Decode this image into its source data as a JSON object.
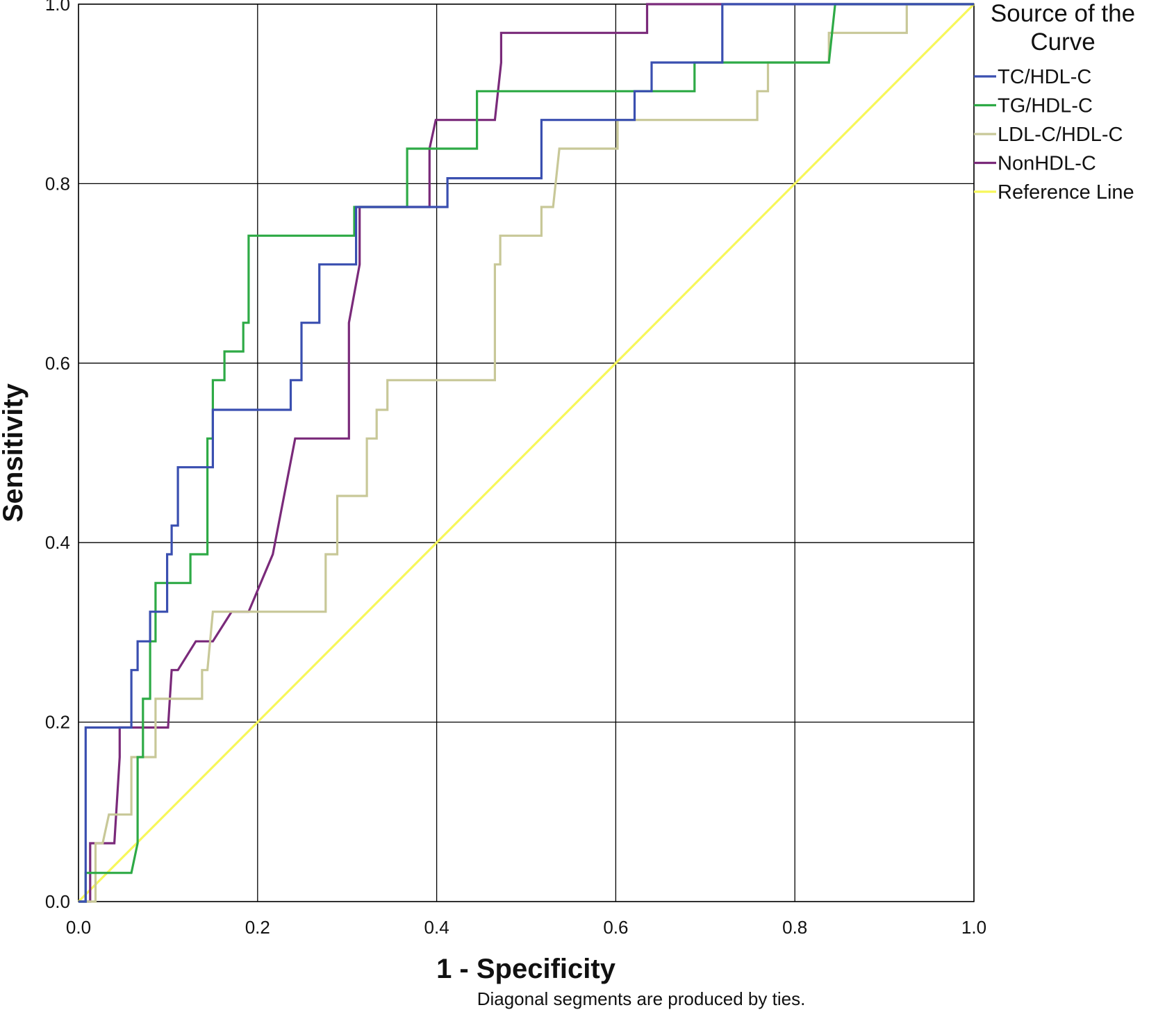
{
  "chart_data": {
    "type": "line",
    "xlabel": "1 - Specificity",
    "ylabel": "Sensitivity",
    "xlim": [
      0,
      1
    ],
    "ylim": [
      0,
      1
    ],
    "x_ticks": [
      "0.0",
      "0.2",
      "0.4",
      "0.6",
      "0.8",
      "1.0"
    ],
    "y_ticks": [
      "0.0",
      "0.2",
      "0.4",
      "0.6",
      "0.8",
      "1.0"
    ],
    "grid": true,
    "legend_title": "Source of the Curve",
    "legend_position": "right",
    "footnote": "Diagonal segments are produced by ties.",
    "series": [
      {
        "name": "TC/HDL-C",
        "color": "#3a4fb0",
        "points": [
          [
            0.0,
            0.0
          ],
          [
            0.008,
            0.0
          ],
          [
            0.008,
            0.194
          ],
          [
            0.059,
            0.194
          ],
          [
            0.059,
            0.258
          ],
          [
            0.066,
            0.258
          ],
          [
            0.066,
            0.29
          ],
          [
            0.08,
            0.29
          ],
          [
            0.08,
            0.323
          ],
          [
            0.099,
            0.323
          ],
          [
            0.099,
            0.387
          ],
          [
            0.104,
            0.387
          ],
          [
            0.104,
            0.419
          ],
          [
            0.111,
            0.419
          ],
          [
            0.111,
            0.484
          ],
          [
            0.15,
            0.484
          ],
          [
            0.15,
            0.548
          ],
          [
            0.237,
            0.548
          ],
          [
            0.237,
            0.581
          ],
          [
            0.249,
            0.581
          ],
          [
            0.249,
            0.645
          ],
          [
            0.269,
            0.645
          ],
          [
            0.269,
            0.71
          ],
          [
            0.31,
            0.71
          ],
          [
            0.31,
            0.774
          ],
          [
            0.412,
            0.774
          ],
          [
            0.412,
            0.806
          ],
          [
            0.517,
            0.806
          ],
          [
            0.517,
            0.871
          ],
          [
            0.621,
            0.871
          ],
          [
            0.621,
            0.903
          ],
          [
            0.64,
            0.903
          ],
          [
            0.64,
            0.935
          ],
          [
            0.719,
            0.935
          ],
          [
            0.719,
            1.0
          ],
          [
            1.0,
            1.0
          ]
        ]
      },
      {
        "name": "TG/HDL-C",
        "color": "#2eaa46",
        "points": [
          [
            0.0,
            0.0
          ],
          [
            0.008,
            0.0
          ],
          [
            0.008,
            0.032
          ],
          [
            0.059,
            0.032
          ],
          [
            0.066,
            0.065
          ],
          [
            0.066,
            0.161
          ],
          [
            0.072,
            0.161
          ],
          [
            0.072,
            0.226
          ],
          [
            0.08,
            0.226
          ],
          [
            0.08,
            0.29
          ],
          [
            0.086,
            0.29
          ],
          [
            0.086,
            0.355
          ],
          [
            0.125,
            0.355
          ],
          [
            0.125,
            0.387
          ],
          [
            0.144,
            0.387
          ],
          [
            0.144,
            0.516
          ],
          [
            0.15,
            0.516
          ],
          [
            0.15,
            0.581
          ],
          [
            0.163,
            0.581
          ],
          [
            0.163,
            0.613
          ],
          [
            0.184,
            0.613
          ],
          [
            0.184,
            0.645
          ],
          [
            0.19,
            0.645
          ],
          [
            0.19,
            0.742
          ],
          [
            0.308,
            0.742
          ],
          [
            0.308,
            0.774
          ],
          [
            0.367,
            0.774
          ],
          [
            0.367,
            0.839
          ],
          [
            0.445,
            0.839
          ],
          [
            0.445,
            0.903
          ],
          [
            0.688,
            0.903
          ],
          [
            0.688,
            0.935
          ],
          [
            0.838,
            0.935
          ],
          [
            0.845,
            1.0
          ],
          [
            1.0,
            1.0
          ]
        ]
      },
      {
        "name": "LDL-C/HDL-C",
        "color": "#c8c898",
        "points": [
          [
            0.0,
            0.0
          ],
          [
            0.019,
            0.0
          ],
          [
            0.019,
            0.065
          ],
          [
            0.027,
            0.065
          ],
          [
            0.034,
            0.097
          ],
          [
            0.059,
            0.097
          ],
          [
            0.059,
            0.161
          ],
          [
            0.086,
            0.161
          ],
          [
            0.086,
            0.226
          ],
          [
            0.138,
            0.226
          ],
          [
            0.138,
            0.258
          ],
          [
            0.144,
            0.258
          ],
          [
            0.15,
            0.323
          ],
          [
            0.276,
            0.323
          ],
          [
            0.276,
            0.387
          ],
          [
            0.289,
            0.387
          ],
          [
            0.289,
            0.452
          ],
          [
            0.322,
            0.452
          ],
          [
            0.322,
            0.516
          ],
          [
            0.333,
            0.516
          ],
          [
            0.333,
            0.548
          ],
          [
            0.345,
            0.548
          ],
          [
            0.345,
            0.581
          ],
          [
            0.465,
            0.581
          ],
          [
            0.465,
            0.71
          ],
          [
            0.471,
            0.71
          ],
          [
            0.471,
            0.742
          ],
          [
            0.517,
            0.742
          ],
          [
            0.517,
            0.774
          ],
          [
            0.53,
            0.774
          ],
          [
            0.537,
            0.839
          ],
          [
            0.602,
            0.839
          ],
          [
            0.602,
            0.871
          ],
          [
            0.758,
            0.871
          ],
          [
            0.758,
            0.903
          ],
          [
            0.77,
            0.903
          ],
          [
            0.77,
            0.935
          ],
          [
            0.838,
            0.935
          ],
          [
            0.838,
            0.968
          ],
          [
            0.925,
            0.968
          ],
          [
            0.925,
            1.0
          ],
          [
            1.0,
            1.0
          ]
        ]
      },
      {
        "name": "NonHDL-C",
        "color": "#7a2a7a",
        "points": [
          [
            0.0,
            0.0
          ],
          [
            0.013,
            0.0
          ],
          [
            0.013,
            0.065
          ],
          [
            0.04,
            0.065
          ],
          [
            0.046,
            0.161
          ],
          [
            0.046,
            0.194
          ],
          [
            0.1,
            0.194
          ],
          [
            0.104,
            0.258
          ],
          [
            0.111,
            0.258
          ],
          [
            0.131,
            0.29
          ],
          [
            0.15,
            0.29
          ],
          [
            0.171,
            0.323
          ],
          [
            0.19,
            0.323
          ],
          [
            0.217,
            0.387
          ],
          [
            0.242,
            0.516
          ],
          [
            0.302,
            0.516
          ],
          [
            0.302,
            0.645
          ],
          [
            0.314,
            0.71
          ],
          [
            0.314,
            0.774
          ],
          [
            0.392,
            0.774
          ],
          [
            0.392,
            0.839
          ],
          [
            0.399,
            0.871
          ],
          [
            0.465,
            0.871
          ],
          [
            0.472,
            0.935
          ],
          [
            0.472,
            0.968
          ],
          [
            0.635,
            0.968
          ],
          [
            0.635,
            1.0
          ],
          [
            1.0,
            1.0
          ]
        ]
      },
      {
        "name": "Reference Line",
        "color": "#f7f75a",
        "points": [
          [
            0.0,
            0.0
          ],
          [
            1.0,
            1.0
          ]
        ]
      }
    ]
  }
}
